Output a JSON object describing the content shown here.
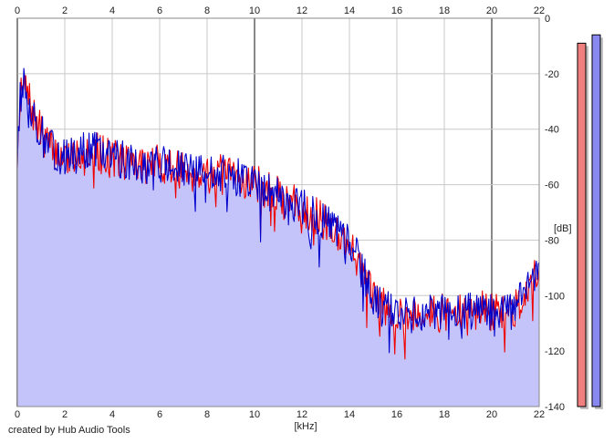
{
  "credit_text": "created by Hub Audio Tools",
  "colors": {
    "background": "#ffffff",
    "fill": "#c4c4fa",
    "left_channel": "#ee0000",
    "right_channel": "#0000cc",
    "grid_minor": "#c8c8c8",
    "grid_major": "#888888",
    "meter_left": "#f08080",
    "meter_right": "#8888f0"
  },
  "chart_data": {
    "type": "line",
    "title": "",
    "xlabel": "[kHz]",
    "ylabel": "[dB]",
    "xlim": [
      0,
      22
    ],
    "ylim": [
      -140,
      0
    ],
    "x_ticks": [
      "0",
      "2",
      "4",
      "6",
      "8",
      "10",
      "12",
      "14",
      "16",
      "18",
      "20",
      "22"
    ],
    "y_ticks": [
      "0",
      "-20",
      "-40",
      "-60",
      "-80",
      "-100",
      "-120",
      "-140"
    ],
    "grid": true,
    "legend": "none",
    "envelope": {
      "x": [
        0,
        0.1,
        0.3,
        0.5,
        0.8,
        1.2,
        1.5,
        2,
        2.5,
        3,
        3.5,
        4,
        4.5,
        5,
        5.5,
        6,
        6.5,
        7,
        7.5,
        8,
        8.5,
        9,
        9.5,
        10,
        10.5,
        11,
        11.5,
        12,
        12.5,
        13,
        13.5,
        14,
        14.3,
        14.6,
        15,
        15.5,
        16,
        16.5,
        17,
        17.5,
        18,
        18.5,
        19,
        19.5,
        20,
        20.5,
        21,
        21.3,
        21.6,
        22
      ],
      "y": [
        -50,
        -30,
        -24,
        -30,
        -38,
        -44,
        -48,
        -50,
        -49,
        -47,
        -48,
        -50,
        -51,
        -52,
        -53,
        -52,
        -54,
        -55,
        -56,
        -55,
        -56,
        -57,
        -58,
        -59,
        -62,
        -64,
        -66,
        -68,
        -71,
        -74,
        -77,
        -82,
        -86,
        -92,
        -101,
        -104,
        -106,
        -107,
        -106,
        -107,
        -106,
        -107,
        -106,
        -105,
        -106,
        -106,
        -105,
        -100,
        -94,
        -93
      ]
    },
    "series": [
      {
        "color": "#ee0000",
        "seed": 7
      },
      {
        "color": "#0000cc",
        "seed": 13
      }
    ],
    "meters": [
      {
        "channel": "left",
        "peak_db": -9
      },
      {
        "channel": "right",
        "peak_db": -6
      }
    ]
  }
}
